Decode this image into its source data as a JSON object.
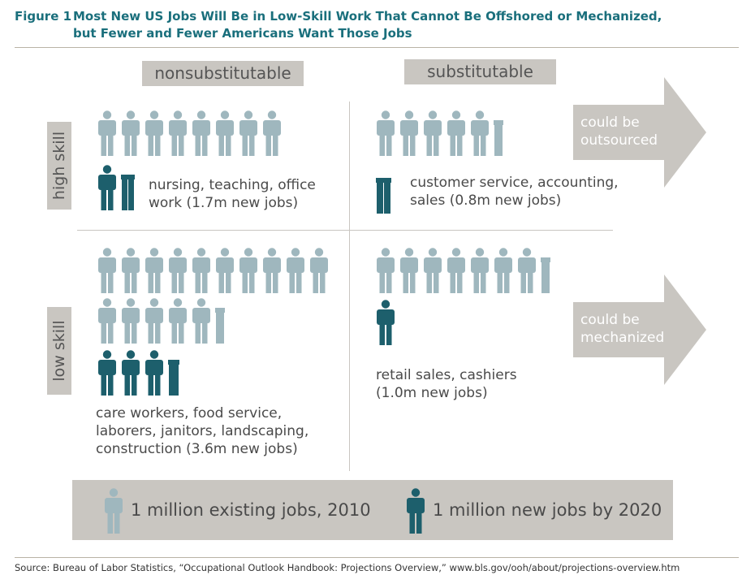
{
  "figure": {
    "label": "Figure 1",
    "title_line1": "Most New US Jobs Will Be in Low-Skill Work That Cannot Be Offshored or Mechanized,",
    "title_line2": "but Fewer and Fewer Americans Want Those Jobs"
  },
  "headers": {
    "col_nonsub": "nonsubstitutable",
    "col_sub": "substitutable",
    "row_high": "high skill",
    "row_low": "low skill"
  },
  "arrows": {
    "outsourced_line1": "could be",
    "outsourced_line2": "outsourced",
    "mechanized_line1": "could be",
    "mechanized_line2": "mechanized"
  },
  "legend": {
    "existing": "1 million existing jobs, 2010",
    "new": "1 million new jobs by 2020"
  },
  "source": "Source: Bureau of Labor Statistics, “Occupational Outlook Handbook: Projections Overview,” www.bls.gov/ooh/about/projections-overview.htm",
  "colors": {
    "existing": "#9fb7be",
    "new": "#1d5f6c",
    "panel": "#c9c6c1",
    "title": "#1a6f7c"
  },
  "chart_data": {
    "type": "pictograph",
    "unit": "1 million jobs per figure",
    "cells": [
      {
        "id": "high-nonsub",
        "row": "high skill",
        "column": "nonsubstitutable",
        "existing_millions": 8,
        "new_millions": 1.7,
        "description_line1": "nursing, teaching, office",
        "description_line2": "work (1.7m new jobs)"
      },
      {
        "id": "high-sub",
        "row": "high skill",
        "column": "substitutable",
        "existing_millions": 5.5,
        "new_millions": 0.8,
        "description_line1": "customer service, accounting,",
        "description_line2": "sales (0.8m new jobs)"
      },
      {
        "id": "low-nonsub",
        "row": "low skill",
        "column": "nonsubstitutable",
        "existing_millions": 15.5,
        "new_millions": 3.6,
        "description_line1": "care workers, food service,",
        "description_line2": "laborers, janitors, landscaping,",
        "description_line3": "construction (3.6m new jobs)"
      },
      {
        "id": "low-sub",
        "row": "low skill",
        "column": "substitutable",
        "existing_millions": 7.5,
        "new_millions": 1.0,
        "description_line1": "retail sales, cashiers",
        "description_line2": "(1.0m new jobs)"
      }
    ]
  }
}
